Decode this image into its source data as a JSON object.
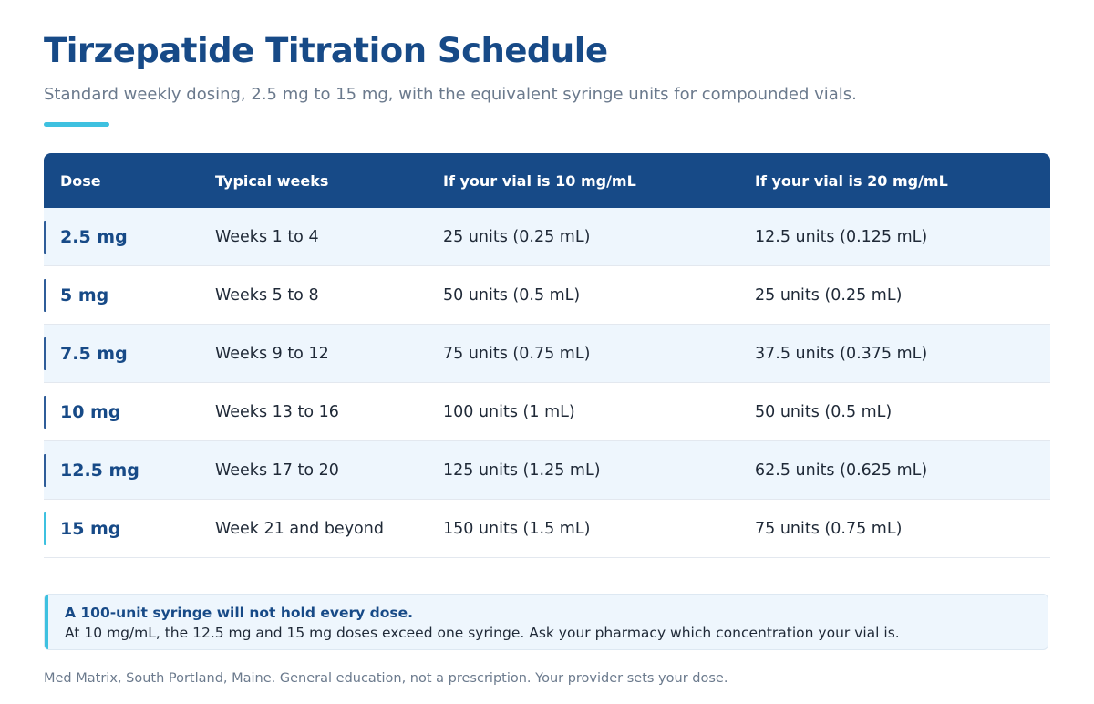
{
  "header": {
    "title": "Tirzepatide Titration Schedule",
    "subtitle": "Standard weekly dosing, 2.5 mg to 15 mg, with the equivalent syringe units for compounded vials."
  },
  "table": {
    "columns": [
      "Dose",
      "Typical weeks",
      "If your vial is 10 mg/mL",
      "If your vial is 20 mg/mL"
    ],
    "rows": [
      {
        "dose": "2.5 mg",
        "weeks": "Weeks 1 to 4",
        "vial10": "25 units (0.25 mL)",
        "vial20": "12.5 units (0.125 mL)"
      },
      {
        "dose": "5 mg",
        "weeks": "Weeks 5 to 8",
        "vial10": "50 units (0.5 mL)",
        "vial20": "25 units (0.25 mL)"
      },
      {
        "dose": "7.5 mg",
        "weeks": "Weeks 9 to 12",
        "vial10": "75 units (0.75 mL)",
        "vial20": "37.5 units (0.375 mL)"
      },
      {
        "dose": "10 mg",
        "weeks": "Weeks 13 to 16",
        "vial10": "100 units (1 mL)",
        "vial20": "50 units (0.5 mL)"
      },
      {
        "dose": "12.5 mg",
        "weeks": "Weeks 17 to 20",
        "vial10": "125 units (1.25 mL)",
        "vial20": "62.5 units (0.625 mL)"
      },
      {
        "dose": "15 mg",
        "weeks": "Week 21 and beyond",
        "vial10": "150 units (1.5 mL)",
        "vial20": "75 units (0.75 mL)"
      }
    ]
  },
  "note": {
    "title": "A 100-unit syringe will not hold every dose.",
    "body": "At 10 mg/mL, the 12.5 mg and 15 mg doses exceed one syringe. Ask your pharmacy which concentration your vial is."
  },
  "footer": {
    "text": "Med Matrix, South Portland, Maine. General education, not a prescription. Your provider sets your dose."
  },
  "colors": {
    "primary": "#174a87",
    "accent": "#3ec1e0",
    "row_shade": "#eef6fd",
    "muted_text": "#6b7a8d"
  }
}
